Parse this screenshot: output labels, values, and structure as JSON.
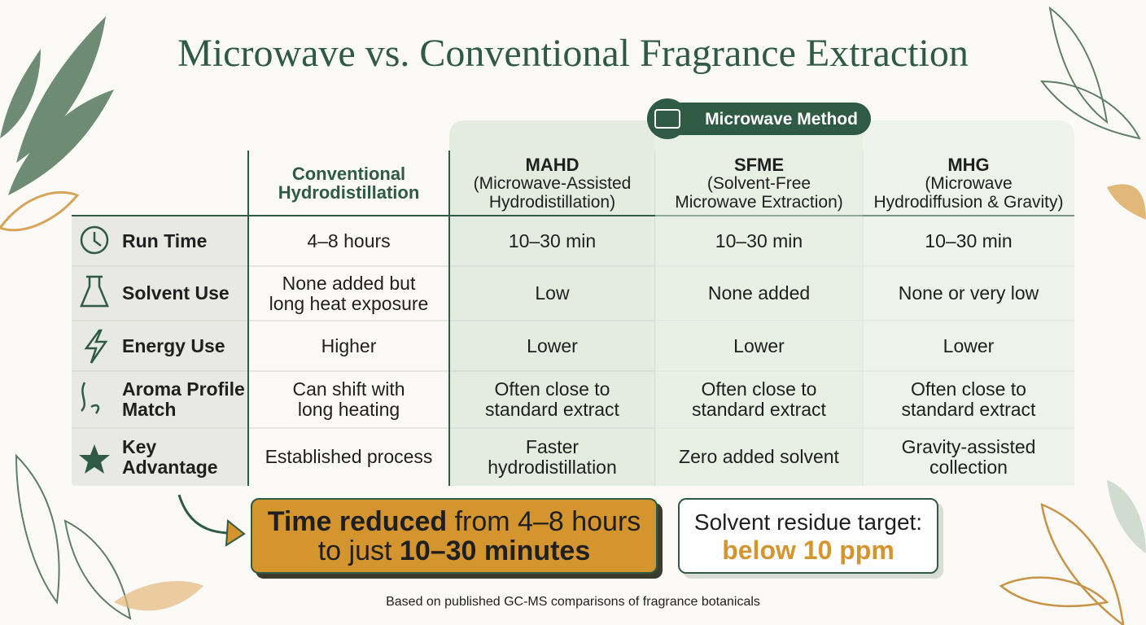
{
  "title": "Microwave vs. Conventional Fragrance Extraction",
  "badge": "Microwave Method",
  "table": {
    "columns": [
      {
        "lines": [
          "Conventional",
          "Hydrodistillation"
        ]
      },
      {
        "lines": [
          "MAHD",
          "(Microwave-Assisted",
          "Hydrodistillation)"
        ]
      },
      {
        "lines": [
          "SFME",
          "(Solvent-Free",
          "Microwave Extraction)"
        ]
      },
      {
        "lines": [
          "MHG",
          "(Microwave",
          "Hydrodiffusion & Gravity)"
        ]
      }
    ],
    "rows": [
      {
        "label": [
          "Run Time"
        ],
        "cells": [
          [
            "4–8 hours"
          ],
          [
            "10–30 min"
          ],
          [
            "10–30 min"
          ],
          [
            "10–30 min"
          ]
        ]
      },
      {
        "label": [
          "Solvent Use"
        ],
        "cells": [
          [
            "None added but",
            "long heat exposure"
          ],
          [
            "Low"
          ],
          [
            "None added"
          ],
          [
            "None or very low"
          ]
        ]
      },
      {
        "label": [
          "Energy Use"
        ],
        "cells": [
          [
            "Higher"
          ],
          [
            "Lower"
          ],
          [
            "Lower"
          ],
          [
            "Lower"
          ]
        ]
      },
      {
        "label": [
          "Aroma Profile",
          "Match"
        ],
        "cells": [
          [
            "Can shift with",
            "long heating"
          ],
          [
            "Often close to",
            "standard extract"
          ],
          [
            "Often close to",
            "standard extract"
          ],
          [
            "Often close to",
            "standard extract"
          ]
        ]
      },
      {
        "label": [
          "Key",
          "Advantage"
        ],
        "cells": [
          [
            "Established process"
          ],
          [
            "Faster",
            "hydrodistillation"
          ],
          [
            "Zero added solvent"
          ],
          [
            "Gravity-assisted",
            "collection"
          ]
        ]
      }
    ]
  },
  "callouts": [
    {
      "lines": [
        [
          "Time reduced",
          "from 4–8 hours"
        ],
        [
          "to just",
          "10–30 minutes"
        ]
      ]
    },
    {
      "lines": [
        [
          "Solvent residue target:"
        ],
        [
          "below 10 ppm"
        ]
      ]
    }
  ],
  "footnote": "Based on published GC-MS comparisons of fragrance botanicals"
}
